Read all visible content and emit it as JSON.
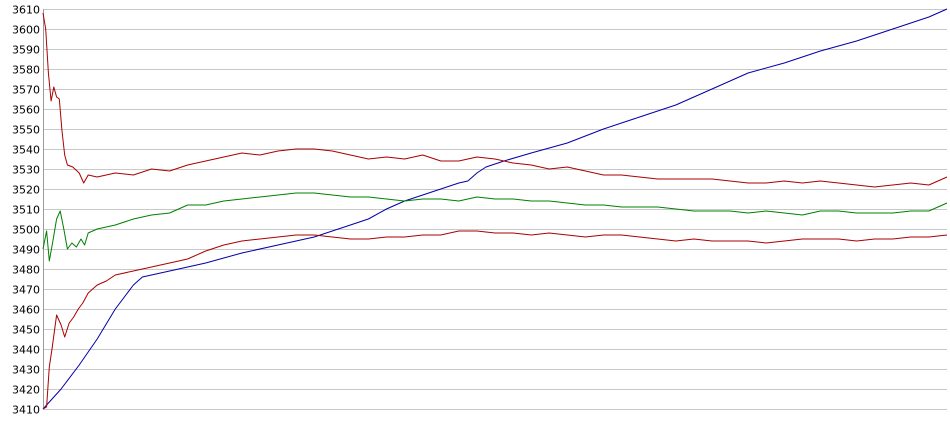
{
  "chart_data": {
    "type": "line",
    "title": "",
    "xlabel": "",
    "ylabel": "",
    "ylim": [
      3410,
      3610
    ],
    "xlim": [
      0,
      100
    ],
    "grid": true,
    "legend": "none",
    "y_ticks": [
      3410,
      3420,
      3430,
      3440,
      3450,
      3460,
      3470,
      3480,
      3490,
      3500,
      3510,
      3520,
      3530,
      3540,
      3550,
      3560,
      3570,
      3580,
      3590,
      3600,
      3610
    ],
    "series": [
      {
        "key": "blue-line",
        "color": "#0000aa",
        "points": [
          [
            0,
            3410
          ],
          [
            2,
            3420
          ],
          [
            4,
            3432
          ],
          [
            6,
            3445
          ],
          [
            8,
            3460
          ],
          [
            10,
            3472
          ],
          [
            11,
            3476
          ],
          [
            14,
            3479
          ],
          [
            18,
            3483
          ],
          [
            22,
            3488
          ],
          [
            26,
            3492
          ],
          [
            30,
            3496
          ],
          [
            34,
            3502
          ],
          [
            36,
            3505
          ],
          [
            38,
            3510
          ],
          [
            40,
            3514
          ],
          [
            42,
            3517
          ],
          [
            44,
            3520
          ],
          [
            46,
            3523
          ],
          [
            47,
            3524
          ],
          [
            48,
            3528
          ],
          [
            49,
            3531
          ],
          [
            51,
            3534
          ],
          [
            54,
            3538
          ],
          [
            58,
            3543
          ],
          [
            62,
            3550
          ],
          [
            66,
            3556
          ],
          [
            70,
            3562
          ],
          [
            74,
            3570
          ],
          [
            78,
            3578
          ],
          [
            82,
            3583
          ],
          [
            86,
            3589
          ],
          [
            90,
            3594
          ],
          [
            94,
            3600
          ],
          [
            98,
            3606
          ],
          [
            100,
            3610
          ]
        ]
      },
      {
        "key": "upper-red-line",
        "color": "#aa0000",
        "points": [
          [
            0,
            3608
          ],
          [
            0.3,
            3600
          ],
          [
            0.6,
            3578
          ],
          [
            0.9,
            3564
          ],
          [
            1.2,
            3571
          ],
          [
            1.5,
            3566
          ],
          [
            1.8,
            3565
          ],
          [
            2.1,
            3549
          ],
          [
            2.4,
            3537
          ],
          [
            2.7,
            3532
          ],
          [
            3.3,
            3531
          ],
          [
            4.0,
            3528
          ],
          [
            4.5,
            3523
          ],
          [
            5.0,
            3527
          ],
          [
            6.0,
            3526
          ],
          [
            8.0,
            3528
          ],
          [
            10,
            3527
          ],
          [
            12,
            3530
          ],
          [
            14,
            3529
          ],
          [
            16,
            3532
          ],
          [
            18,
            3534
          ],
          [
            20,
            3536
          ],
          [
            22,
            3538
          ],
          [
            24,
            3537
          ],
          [
            26,
            3539
          ],
          [
            28,
            3540
          ],
          [
            30,
            3540
          ],
          [
            32,
            3539
          ],
          [
            34,
            3537
          ],
          [
            36,
            3535
          ],
          [
            38,
            3536
          ],
          [
            40,
            3535
          ],
          [
            42,
            3537
          ],
          [
            44,
            3534
          ],
          [
            46,
            3534
          ],
          [
            48,
            3536
          ],
          [
            50,
            3535
          ],
          [
            52,
            3533
          ],
          [
            54,
            3532
          ],
          [
            56,
            3530
          ],
          [
            58,
            3531
          ],
          [
            60,
            3529
          ],
          [
            62,
            3527
          ],
          [
            64,
            3527
          ],
          [
            66,
            3526
          ],
          [
            68,
            3525
          ],
          [
            70,
            3525
          ],
          [
            72,
            3525
          ],
          [
            74,
            3525
          ],
          [
            76,
            3524
          ],
          [
            78,
            3523
          ],
          [
            80,
            3523
          ],
          [
            82,
            3524
          ],
          [
            84,
            3523
          ],
          [
            86,
            3524
          ],
          [
            88,
            3523
          ],
          [
            90,
            3522
          ],
          [
            92,
            3521
          ],
          [
            94,
            3522
          ],
          [
            96,
            3523
          ],
          [
            98,
            3522
          ],
          [
            100,
            3526
          ]
        ]
      },
      {
        "key": "green-line",
        "color": "#008000",
        "points": [
          [
            0,
            3490
          ],
          [
            0.4,
            3499
          ],
          [
            0.7,
            3484
          ],
          [
            1.1,
            3494
          ],
          [
            1.5,
            3505
          ],
          [
            1.9,
            3509
          ],
          [
            2.3,
            3500
          ],
          [
            2.7,
            3490
          ],
          [
            3.2,
            3493
          ],
          [
            3.7,
            3491
          ],
          [
            4.2,
            3495
          ],
          [
            4.6,
            3492
          ],
          [
            5.0,
            3498
          ],
          [
            6,
            3500
          ],
          [
            8,
            3502
          ],
          [
            10,
            3505
          ],
          [
            12,
            3507
          ],
          [
            14,
            3508
          ],
          [
            16,
            3512
          ],
          [
            18,
            3512
          ],
          [
            20,
            3514
          ],
          [
            22,
            3515
          ],
          [
            24,
            3516
          ],
          [
            26,
            3517
          ],
          [
            28,
            3518
          ],
          [
            30,
            3518
          ],
          [
            32,
            3517
          ],
          [
            34,
            3516
          ],
          [
            36,
            3516
          ],
          [
            38,
            3515
          ],
          [
            40,
            3514
          ],
          [
            42,
            3515
          ],
          [
            44,
            3515
          ],
          [
            46,
            3514
          ],
          [
            48,
            3516
          ],
          [
            50,
            3515
          ],
          [
            52,
            3515
          ],
          [
            54,
            3514
          ],
          [
            56,
            3514
          ],
          [
            58,
            3513
          ],
          [
            60,
            3512
          ],
          [
            62,
            3512
          ],
          [
            64,
            3511
          ],
          [
            66,
            3511
          ],
          [
            68,
            3511
          ],
          [
            70,
            3510
          ],
          [
            72,
            3509
          ],
          [
            74,
            3509
          ],
          [
            76,
            3509
          ],
          [
            78,
            3508
          ],
          [
            80,
            3509
          ],
          [
            82,
            3508
          ],
          [
            84,
            3507
          ],
          [
            86,
            3509
          ],
          [
            88,
            3509
          ],
          [
            90,
            3508
          ],
          [
            92,
            3508
          ],
          [
            94,
            3508
          ],
          [
            96,
            3509
          ],
          [
            98,
            3509
          ],
          [
            100,
            3513
          ]
        ]
      },
      {
        "key": "lower-red-line",
        "color": "#aa0000",
        "points": [
          [
            0,
            3410
          ],
          [
            0.4,
            3411
          ],
          [
            0.7,
            3431
          ],
          [
            1.0,
            3440
          ],
          [
            1.5,
            3457
          ],
          [
            2.0,
            3452
          ],
          [
            2.4,
            3446
          ],
          [
            2.9,
            3453
          ],
          [
            3.4,
            3456
          ],
          [
            3.9,
            3460
          ],
          [
            4.4,
            3463
          ],
          [
            5.0,
            3468
          ],
          [
            6,
            3472
          ],
          [
            7,
            3474
          ],
          [
            8,
            3477
          ],
          [
            10,
            3479
          ],
          [
            12,
            3481
          ],
          [
            14,
            3483
          ],
          [
            16,
            3485
          ],
          [
            18,
            3489
          ],
          [
            20,
            3492
          ],
          [
            22,
            3494
          ],
          [
            24,
            3495
          ],
          [
            26,
            3496
          ],
          [
            28,
            3497
          ],
          [
            30,
            3497
          ],
          [
            32,
            3496
          ],
          [
            34,
            3495
          ],
          [
            36,
            3495
          ],
          [
            38,
            3496
          ],
          [
            40,
            3496
          ],
          [
            42,
            3497
          ],
          [
            44,
            3497
          ],
          [
            46,
            3499
          ],
          [
            48,
            3499
          ],
          [
            50,
            3498
          ],
          [
            52,
            3498
          ],
          [
            54,
            3497
          ],
          [
            56,
            3498
          ],
          [
            58,
            3497
          ],
          [
            60,
            3496
          ],
          [
            62,
            3497
          ],
          [
            64,
            3497
          ],
          [
            66,
            3496
          ],
          [
            68,
            3495
          ],
          [
            70,
            3494
          ],
          [
            72,
            3495
          ],
          [
            74,
            3494
          ],
          [
            76,
            3494
          ],
          [
            78,
            3494
          ],
          [
            80,
            3493
          ],
          [
            82,
            3494
          ],
          [
            84,
            3495
          ],
          [
            86,
            3495
          ],
          [
            88,
            3495
          ],
          [
            90,
            3494
          ],
          [
            92,
            3495
          ],
          [
            94,
            3495
          ],
          [
            96,
            3496
          ],
          [
            98,
            3496
          ],
          [
            100,
            3497
          ]
        ]
      }
    ]
  }
}
